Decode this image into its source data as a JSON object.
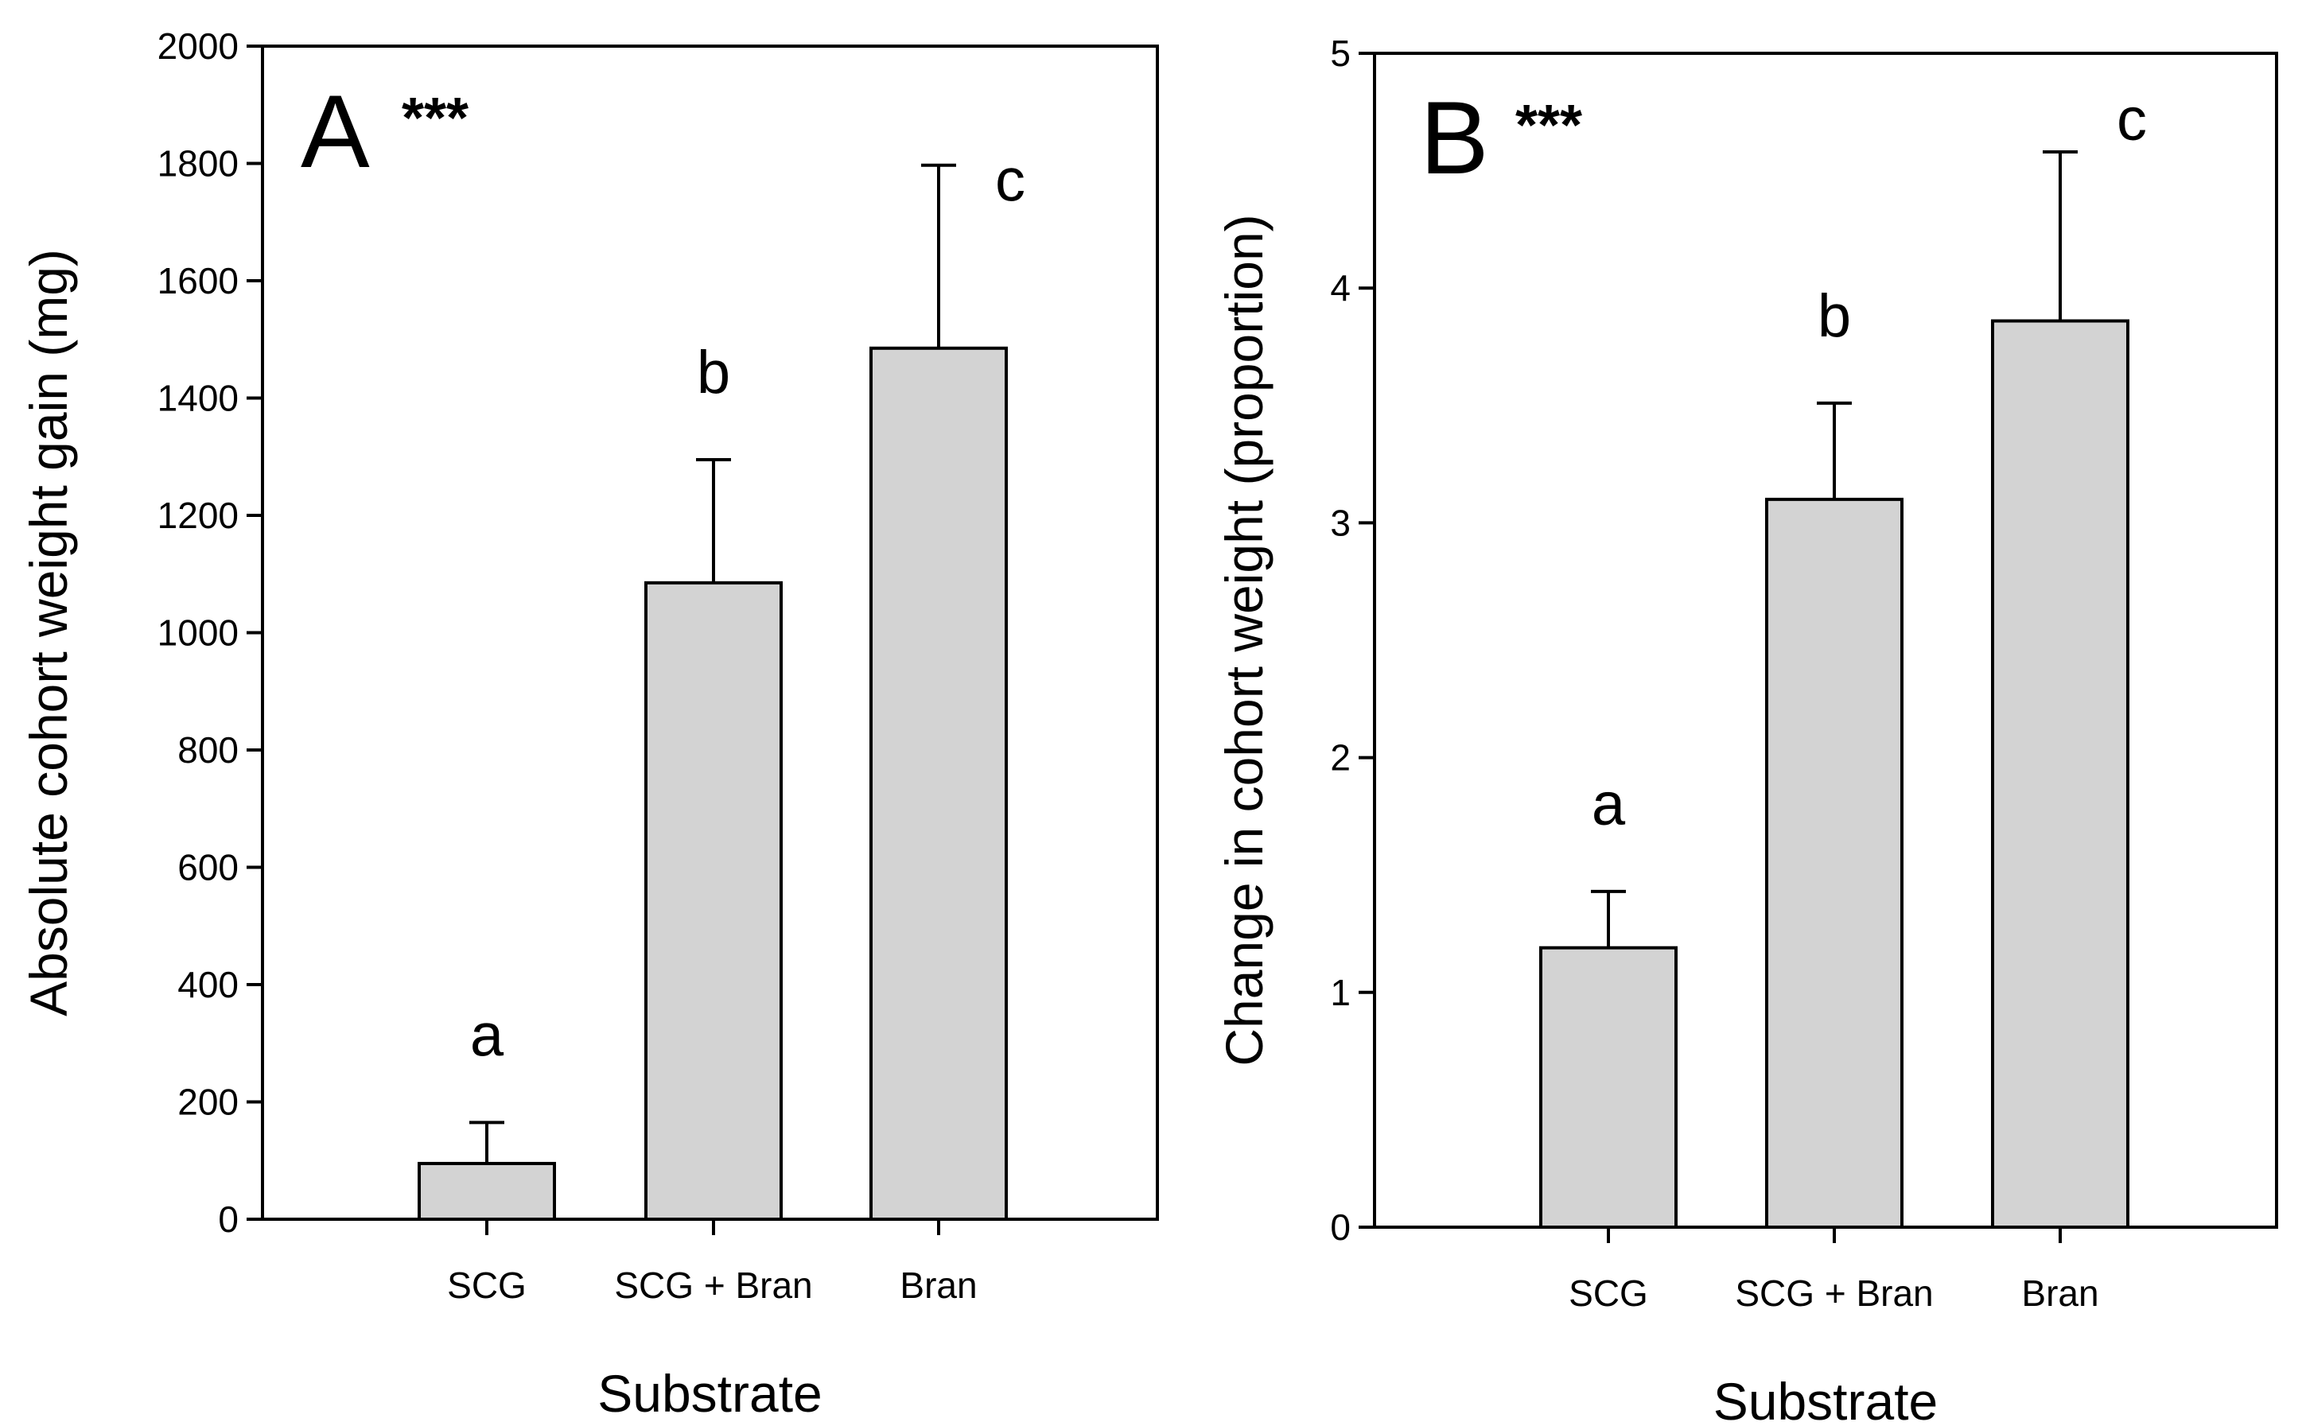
{
  "chart_data": [
    {
      "type": "bar",
      "panel_label": "A",
      "significance": "***",
      "title": "",
      "xlabel": "Substrate",
      "ylabel": "Absolute cohort weight gain (mg)",
      "categories": [
        "SCG",
        "SCG + Bran",
        "Bran"
      ],
      "values": [
        95,
        1085,
        1485
      ],
      "error_upper": [
        165,
        1295,
        1797
      ],
      "group_letters": [
        "a",
        "b",
        "c"
      ],
      "ylim": [
        0,
        2000
      ],
      "yticks": [
        0,
        200,
        400,
        600,
        800,
        1000,
        1200,
        1400,
        1600,
        1800,
        2000
      ],
      "ytick_labels": [
        "0",
        "200",
        "400",
        "600",
        "800",
        "1000",
        "1200",
        "1400",
        "1600",
        "1800",
        "2000"
      ],
      "grid": false,
      "bar_color": "#d3d3d3"
    },
    {
      "type": "bar",
      "panel_label": "B",
      "significance": "***",
      "title": "",
      "xlabel": "Substrate",
      "ylabel": "Change in cohort weight (proportion)",
      "categories": [
        "SCG",
        "SCG + Bran",
        "Bran"
      ],
      "values": [
        1.19,
        3.1,
        3.86
      ],
      "error_upper": [
        1.43,
        3.51,
        4.58
      ],
      "group_letters": [
        "a",
        "b",
        "c"
      ],
      "ylim": [
        0,
        5
      ],
      "yticks": [
        0,
        1,
        2,
        3,
        4,
        5
      ],
      "ytick_labels": [
        "0",
        "1",
        "2",
        "3",
        "4",
        "5"
      ],
      "grid": false,
      "bar_color": "#d3d3d3"
    }
  ]
}
